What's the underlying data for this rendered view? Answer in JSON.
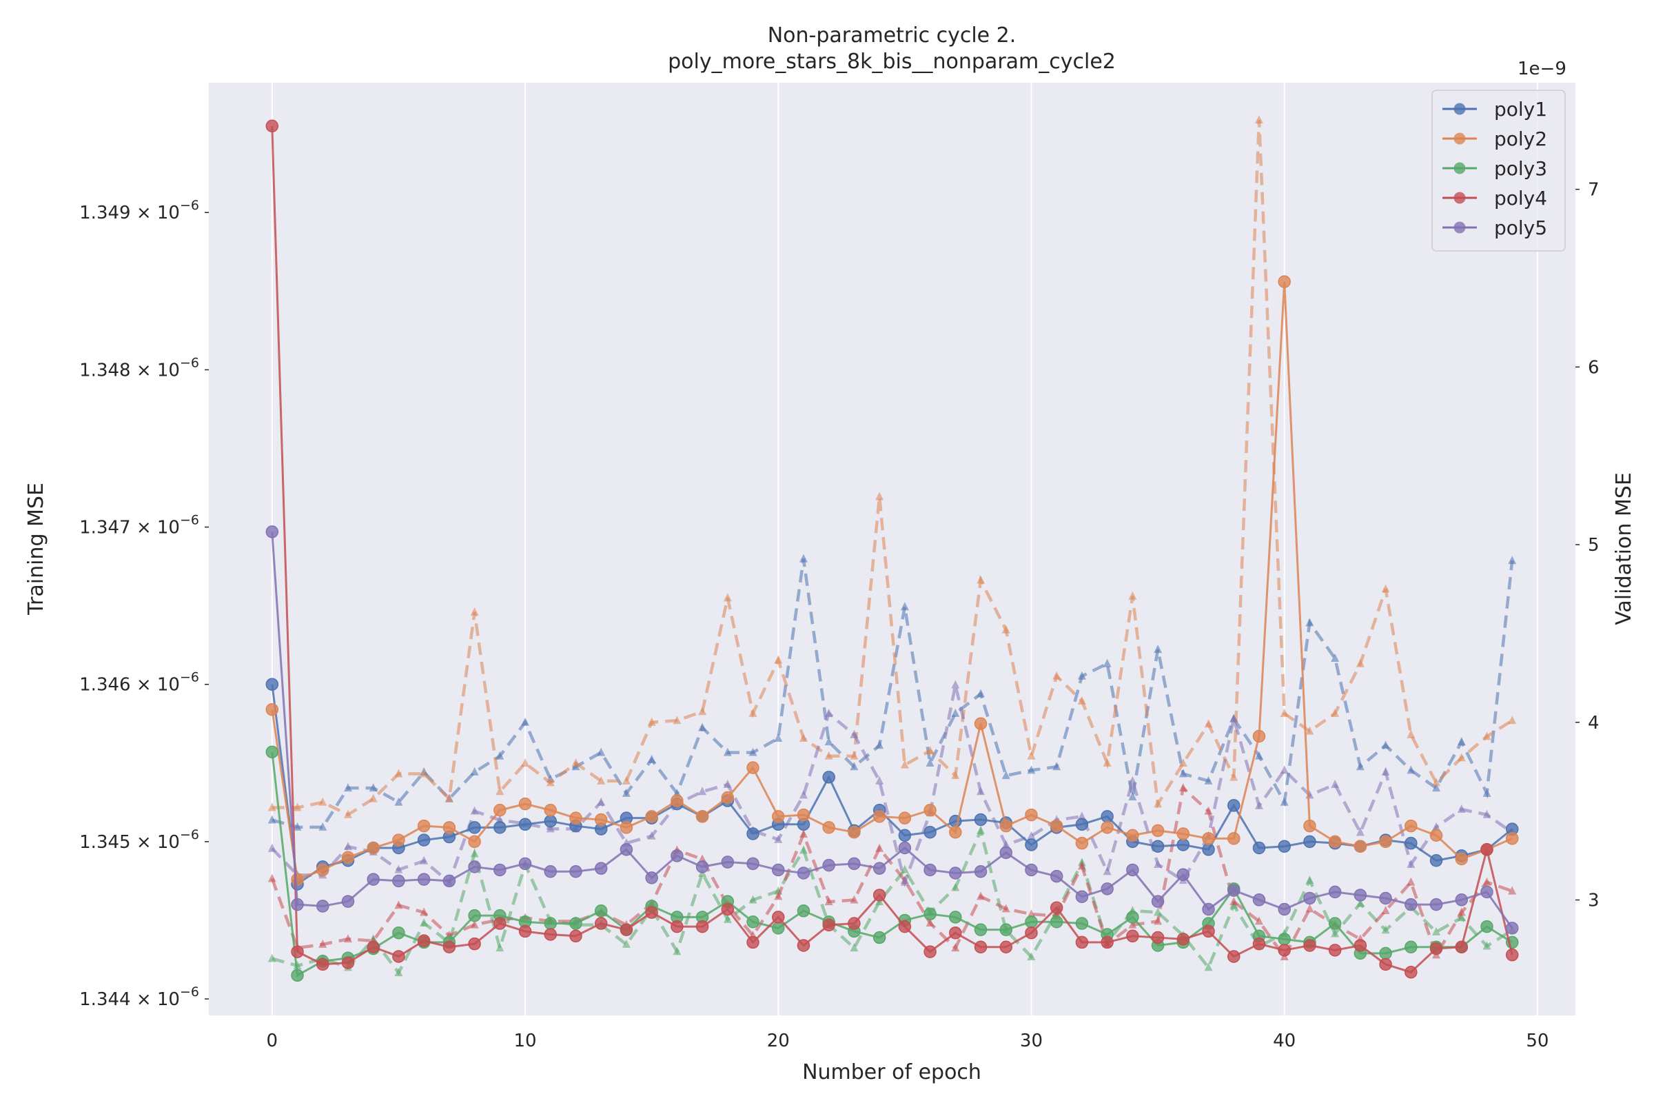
{
  "chart_data": {
    "type": "line",
    "title": "Non-parametric cycle 2.",
    "subtitle": "poly_more_stars_8k_bis__nonparam_cycle2",
    "xlabel": "Number of epoch",
    "ylabel_left": "Training MSE",
    "ylabel_right": "Validation MSE",
    "right_offset_text": "1e−9",
    "xlim": [
      -2.5,
      51.5
    ],
    "ylim_left": [
      1.343895e-06,
      1.349825e-06
    ],
    "ylim_right": [
      2.35,
      7.6
    ],
    "x_ticks": [
      0,
      10,
      20,
      30,
      40,
      50
    ],
    "x_tick_labels": [
      "0",
      "10",
      "20",
      "30",
      "40",
      "50"
    ],
    "left_ticks": [
      1.344e-06,
      1.345e-06,
      1.346e-06,
      1.347e-06,
      1.348e-06,
      1.349e-06
    ],
    "left_tick_mantissa": [
      "1.344",
      "1.345",
      "1.346",
      "1.347",
      "1.348",
      "1.349"
    ],
    "left_tick_base": "10",
    "left_tick_exponent": "−6",
    "right_ticks": [
      3,
      4,
      5,
      6,
      7
    ],
    "right_tick_labels": [
      "3",
      "4",
      "5",
      "6",
      "7"
    ],
    "grid": true,
    "legend_position": "upper right",
    "legend": [
      "poly1",
      "poly2",
      "poly3",
      "poly4",
      "poly5"
    ],
    "colors": {
      "background": "#EAEAF2",
      "grid": "#FFFFFF",
      "text": "#262626",
      "poly1": "#4C72B0",
      "poly2": "#DD8452",
      "poly3": "#55A868",
      "poly4": "#C44E52",
      "poly5": "#8172B3"
    },
    "x": [
      0,
      1,
      2,
      3,
      4,
      5,
      6,
      7,
      8,
      9,
      10,
      11,
      12,
      13,
      14,
      15,
      16,
      17,
      18,
      19,
      20,
      21,
      22,
      23,
      24,
      25,
      26,
      27,
      28,
      29,
      30,
      31,
      32,
      33,
      34,
      35,
      36,
      37,
      38,
      39,
      40,
      41,
      42,
      43,
      44,
      45,
      46,
      47,
      48,
      49
    ],
    "series": [
      {
        "name": "poly1",
        "color_key": "poly1",
        "train": [
          1.346e-06,
          1.34473e-06,
          1.34484e-06,
          1.34488e-06,
          1.34496e-06,
          1.34496e-06,
          1.34501e-06,
          1.34503e-06,
          1.34509e-06,
          1.34509e-06,
          1.34511e-06,
          1.34513e-06,
          1.3451e-06,
          1.34508e-06,
          1.34515e-06,
          1.34515e-06,
          1.34524e-06,
          1.34516e-06,
          1.34526e-06,
          1.34505e-06,
          1.34511e-06,
          1.34511e-06,
          1.34541e-06,
          1.34507e-06,
          1.3452e-06,
          1.34504e-06,
          1.34506e-06,
          1.34513e-06,
          1.34514e-06,
          1.34512e-06,
          1.34498e-06,
          1.34509e-06,
          1.34511e-06,
          1.34516e-06,
          1.345e-06,
          1.34497e-06,
          1.34498e-06,
          1.34495e-06,
          1.34523e-06,
          1.34496e-06,
          1.34497e-06,
          1.345e-06,
          1.34499e-06,
          1.34497e-06,
          1.34501e-06,
          1.34499e-06,
          1.34488e-06,
          1.34491e-06,
          1.34495e-06,
          1.34508e-06
        ],
        "val": [
          3.45,
          3.41,
          3.41,
          3.63,
          3.63,
          3.55,
          3.72,
          3.57,
          3.72,
          3.81,
          4.0,
          3.68,
          3.75,
          3.83,
          3.6,
          3.79,
          3.6,
          3.97,
          3.83,
          3.83,
          3.91,
          4.92,
          3.89,
          3.75,
          3.87,
          4.65,
          3.77,
          4.05,
          4.16,
          3.7,
          3.73,
          3.75,
          4.26,
          4.33,
          3.58,
          4.41,
          3.71,
          3.67,
          4.02,
          3.81,
          3.55,
          4.56,
          4.36,
          3.75,
          3.87,
          3.73,
          3.63,
          3.89,
          3.6,
          4.91
        ]
      },
      {
        "name": "poly2",
        "color_key": "poly2",
        "train": [
          1.34584e-06,
          1.34476e-06,
          1.34482e-06,
          1.3449e-06,
          1.34496e-06,
          1.34501e-06,
          1.3451e-06,
          1.34509e-06,
          1.345e-06,
          1.3452e-06,
          1.34524e-06,
          1.3452e-06,
          1.34515e-06,
          1.34514e-06,
          1.34509e-06,
          1.34516e-06,
          1.34526e-06,
          1.34516e-06,
          1.34528e-06,
          1.34547e-06,
          1.34516e-06,
          1.34517e-06,
          1.34509e-06,
          1.34506e-06,
          1.34516e-06,
          1.34515e-06,
          1.3452e-06,
          1.34506e-06,
          1.34575e-06,
          1.3451e-06,
          1.34517e-06,
          1.3451e-06,
          1.34499e-06,
          1.34509e-06,
          1.34504e-06,
          1.34507e-06,
          1.34505e-06,
          1.34502e-06,
          1.34502e-06,
          1.34567e-06,
          1.34856e-06,
          1.3451e-06,
          1.345e-06,
          1.34497e-06,
          1.345e-06,
          1.3451e-06,
          1.34504e-06,
          1.34489e-06,
          1.34495e-06,
          1.34502e-06
        ],
        "val": [
          3.52,
          3.52,
          3.55,
          3.48,
          3.57,
          3.71,
          3.71,
          3.57,
          4.62,
          3.61,
          3.77,
          3.66,
          3.77,
          3.67,
          3.67,
          4.0,
          4.01,
          4.06,
          4.7,
          4.05,
          4.35,
          3.91,
          3.81,
          3.81,
          5.27,
          3.76,
          3.84,
          3.7,
          4.8,
          4.52,
          3.81,
          4.26,
          4.12,
          3.77,
          4.71,
          3.54,
          3.77,
          3.99,
          3.69,
          7.39,
          4.05,
          3.95,
          4.05,
          4.33,
          4.75,
          3.93,
          3.66,
          3.8,
          3.92,
          4.01
        ]
      },
      {
        "name": "poly3",
        "color_key": "poly3",
        "train": [
          1.34557e-06,
          1.34415e-06,
          1.34424e-06,
          1.34426e-06,
          1.34432e-06,
          1.34442e-06,
          1.34436e-06,
          1.34436e-06,
          1.34453e-06,
          1.34453e-06,
          1.34449e-06,
          1.34448e-06,
          1.34448e-06,
          1.34456e-06,
          1.34444e-06,
          1.34459e-06,
          1.34452e-06,
          1.34452e-06,
          1.34462e-06,
          1.34449e-06,
          1.34445e-06,
          1.34456e-06,
          1.34449e-06,
          1.34443e-06,
          1.34439e-06,
          1.3445e-06,
          1.34454e-06,
          1.34452e-06,
          1.34444e-06,
          1.34444e-06,
          1.34449e-06,
          1.34449e-06,
          1.34448e-06,
          1.34441e-06,
          1.34452e-06,
          1.34434e-06,
          1.34436e-06,
          1.34448e-06,
          1.3447e-06,
          1.3444e-06,
          1.34438e-06,
          1.34436e-06,
          1.34448e-06,
          1.34429e-06,
          1.34429e-06,
          1.34433e-06,
          1.34433e-06,
          1.34433e-06,
          1.34446e-06,
          1.34436e-06
        ],
        "val": [
          2.67,
          2.63,
          2.67,
          2.62,
          2.78,
          2.59,
          2.87,
          2.76,
          3.26,
          2.73,
          3.2,
          2.88,
          2.86,
          2.86,
          2.75,
          2.95,
          2.71,
          3.15,
          2.89,
          3.0,
          3.05,
          3.28,
          2.86,
          2.73,
          2.99,
          3.17,
          2.93,
          3.07,
          3.39,
          2.83,
          2.68,
          2.93,
          3.21,
          2.76,
          2.94,
          2.93,
          2.8,
          2.62,
          2.97,
          2.74,
          2.81,
          3.11,
          2.81,
          2.98,
          2.83,
          2.96,
          2.82,
          2.9,
          2.74,
          2.83
        ]
      },
      {
        "name": "poly4",
        "color_key": "poly4",
        "train": [
          1.34955e-06,
          1.3443e-06,
          1.34422e-06,
          1.34423e-06,
          1.34433e-06,
          1.34427e-06,
          1.34437e-06,
          1.34433e-06,
          1.34435e-06,
          1.34448e-06,
          1.34443e-06,
          1.34441e-06,
          1.3444e-06,
          1.34448e-06,
          1.34444e-06,
          1.34455e-06,
          1.34446e-06,
          1.34446e-06,
          1.34457e-06,
          1.34436e-06,
          1.34452e-06,
          1.34434e-06,
          1.34447e-06,
          1.34448e-06,
          1.34466e-06,
          1.34446e-06,
          1.3443e-06,
          1.34442e-06,
          1.34433e-06,
          1.34433e-06,
          1.34442e-06,
          1.34458e-06,
          1.34436e-06,
          1.34436e-06,
          1.3444e-06,
          1.34439e-06,
          1.34438e-06,
          1.34443e-06,
          1.34427e-06,
          1.34435e-06,
          1.34431e-06,
          1.34434e-06,
          1.34431e-06,
          1.34434e-06,
          1.34422e-06,
          1.34417e-06,
          1.34432e-06,
          1.34433e-06,
          1.34495e-06,
          1.34428e-06
        ],
        "val": [
          3.12,
          2.73,
          2.75,
          2.78,
          2.77,
          2.97,
          2.93,
          2.8,
          2.86,
          2.89,
          2.9,
          2.88,
          2.88,
          2.93,
          2.86,
          2.98,
          3.28,
          3.23,
          2.97,
          2.8,
          3.02,
          3.37,
          2.99,
          3.0,
          3.29,
          3.11,
          2.87,
          2.73,
          3.02,
          2.95,
          2.92,
          2.91,
          3.19,
          2.75,
          2.86,
          2.88,
          3.63,
          3.5,
          2.99,
          2.88,
          2.68,
          2.95,
          2.86,
          2.78,
          2.94,
          3.1,
          2.69,
          2.93,
          3.1,
          3.05
        ]
      },
      {
        "name": "poly5",
        "color_key": "poly5",
        "train": [
          1.34697e-06,
          1.3446e-06,
          1.34459e-06,
          1.34462e-06,
          1.34476e-06,
          1.34475e-06,
          1.34476e-06,
          1.34475e-06,
          1.34484e-06,
          1.34482e-06,
          1.34486e-06,
          1.34481e-06,
          1.34481e-06,
          1.34483e-06,
          1.34495e-06,
          1.34477e-06,
          1.34491e-06,
          1.34484e-06,
          1.34487e-06,
          1.34486e-06,
          1.34482e-06,
          1.3448e-06,
          1.34485e-06,
          1.34486e-06,
          1.34483e-06,
          1.34496e-06,
          1.34482e-06,
          1.3448e-06,
          1.34481e-06,
          1.34493e-06,
          1.34482e-06,
          1.34478e-06,
          1.34465e-06,
          1.3447e-06,
          1.34482e-06,
          1.34462e-06,
          1.34479e-06,
          1.34457e-06,
          1.34469e-06,
          1.34463e-06,
          1.34457e-06,
          1.34464e-06,
          1.34468e-06,
          1.34466e-06,
          1.34464e-06,
          1.3446e-06,
          1.3446e-06,
          1.34463e-06,
          1.34468e-06,
          1.34445e-06
        ],
        "val": [
          3.29,
          3.14,
          3.14,
          3.3,
          3.27,
          3.17,
          3.22,
          3.1,
          3.5,
          3.45,
          3.43,
          3.4,
          3.4,
          3.55,
          3.32,
          3.36,
          3.54,
          3.61,
          3.65,
          3.39,
          3.34,
          3.59,
          4.05,
          3.93,
          3.67,
          3.1,
          3.49,
          4.21,
          3.61,
          3.31,
          3.36,
          3.45,
          3.47,
          3.16,
          3.67,
          3.2,
          3.11,
          3.36,
          4.02,
          3.53,
          3.73,
          3.59,
          3.65,
          3.38,
          3.72,
          3.2,
          3.41,
          3.51,
          3.48,
          3.38
        ]
      }
    ]
  }
}
